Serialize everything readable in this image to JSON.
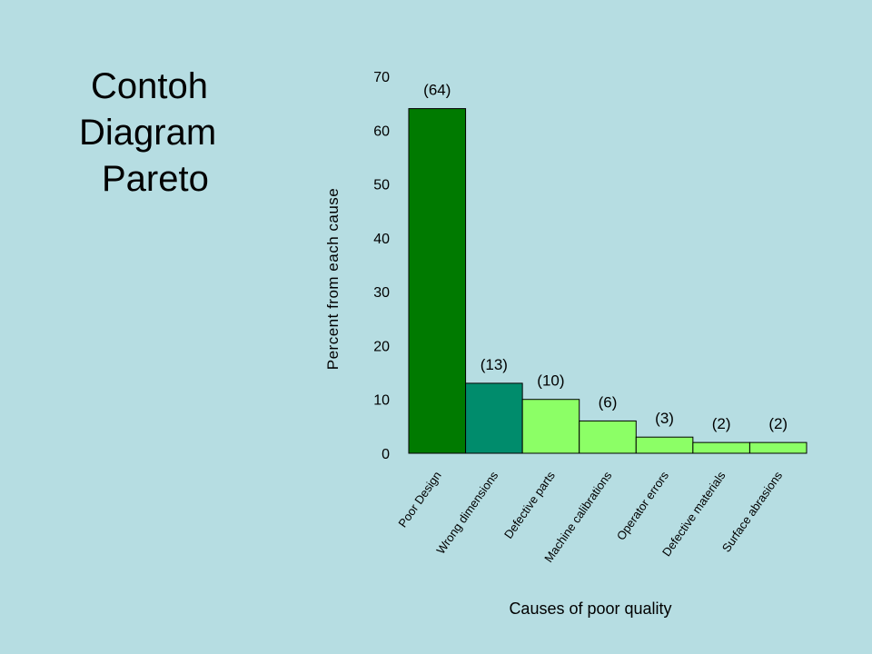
{
  "slide": {
    "title_lines": [
      "Contoh",
      "Diagram",
      "Pareto"
    ],
    "background_color": "#b6dde2"
  },
  "chart_data": {
    "type": "bar",
    "title": "Contoh Diagram Pareto",
    "xlabel": "Causes of poor quality",
    "ylabel": "Percent from each cause",
    "ylim": [
      0,
      70
    ],
    "yticks": [
      0,
      10,
      20,
      30,
      40,
      50,
      60,
      70
    ],
    "grid": false,
    "categories": [
      "Poor Design",
      "Wrong dimensions",
      "Defective parts",
      "Machine calibrations",
      "Operator errors",
      "Defective materials",
      "Surface abrasions"
    ],
    "values": [
      64,
      13,
      10,
      6,
      3,
      2,
      2
    ],
    "data_labels": [
      "(64)",
      "(13)",
      "(10)",
      "(6)",
      "(3)",
      "(2)",
      "(2)"
    ],
    "colors": [
      "#007a00",
      "#008c6c",
      "#8cff66",
      "#8cff66",
      "#8cff66",
      "#8cff66",
      "#8cff66"
    ],
    "bar_edge_color": "#000000"
  }
}
